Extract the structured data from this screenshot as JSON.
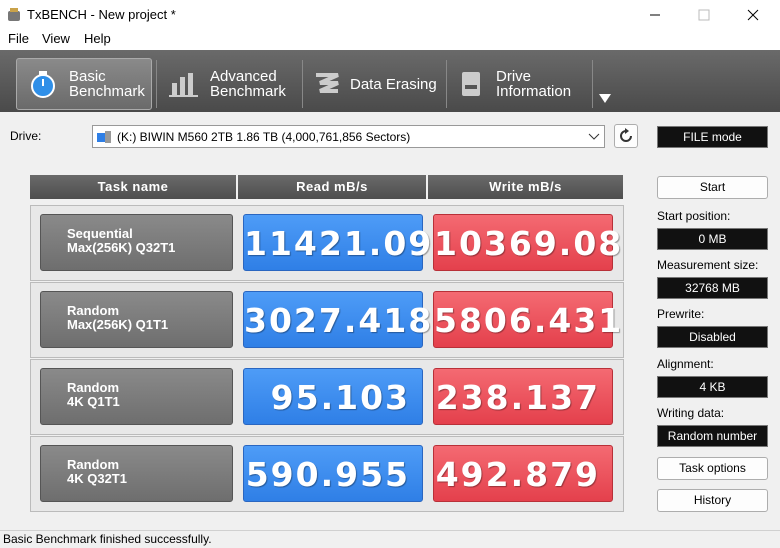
{
  "window": {
    "title": "TxBENCH - New project *"
  },
  "menu": [
    "File",
    "View",
    "Help"
  ],
  "tabs": [
    [
      "Basic",
      "Benchmark"
    ],
    [
      "Advanced",
      "Benchmark"
    ],
    [
      "Data Erasing"
    ],
    [
      "Drive",
      "Information"
    ]
  ],
  "drive": {
    "label": "Drive:",
    "value": "(K:) BIWIN M560 2TB  1.86 TB (4,000,761,856 Sectors)"
  },
  "mode": "FILE mode",
  "table": {
    "headers": [
      "Task name",
      "Read mB/s",
      "Write mB/s"
    ],
    "rows": [
      {
        "task": [
          "Sequential",
          "Max(256K) Q32T1"
        ],
        "read": "11421.09",
        "write": "10369.08"
      },
      {
        "task": [
          "Random",
          "Max(256K) Q1T1"
        ],
        "read": "3027.418",
        "write": "5806.431"
      },
      {
        "task": [
          "Random",
          "4K Q1T1"
        ],
        "read": "95.103",
        "write": "238.137"
      },
      {
        "task": [
          "Random",
          "4K Q32T1"
        ],
        "read": "590.955",
        "write": "492.879"
      }
    ]
  },
  "side": {
    "start": "Start",
    "fields": [
      {
        "label": "Start position:",
        "value": "0 MB"
      },
      {
        "label": "Measurement size:",
        "value": "32768 MB"
      },
      {
        "label": "Prewrite:",
        "value": "Disabled"
      },
      {
        "label": "Alignment:",
        "value": "4 KB"
      },
      {
        "label": "Writing data:",
        "value": "Random number"
      }
    ],
    "task_options": "Task options",
    "history": "History"
  },
  "status": "Basic Benchmark finished successfully."
}
